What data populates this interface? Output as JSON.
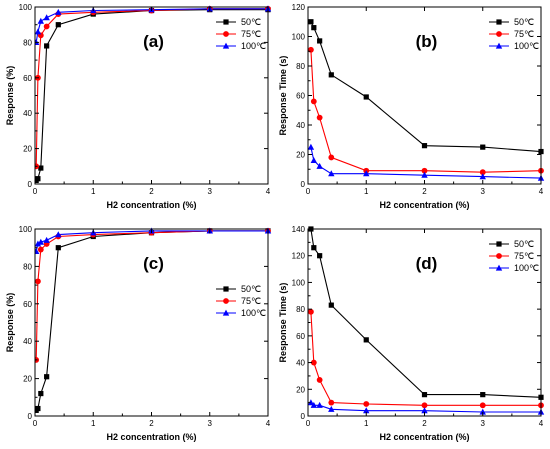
{
  "colors": {
    "50": "#000000",
    "75": "#ff0000",
    "100": "#0000ff"
  },
  "chart_data": [
    {
      "panel": "(a)",
      "type": "line",
      "xlabel": "H2 concentration (%)",
      "ylabel": "Response (%)",
      "xlim": [
        0,
        4
      ],
      "ylim": [
        0,
        100
      ],
      "xticks": [
        0,
        1,
        2,
        3,
        4
      ],
      "yticks": [
        0,
        20,
        40,
        60,
        80,
        100
      ],
      "legend": "top-right",
      "grid": false,
      "series": [
        {
          "name": "50℃",
          "color": "#000000",
          "marker": "square",
          "x": [
            0.02,
            0.05,
            0.1,
            0.2,
            0.4,
            1,
            2,
            3,
            4
          ],
          "y": [
            2,
            3,
            9,
            78,
            90,
            96,
            98,
            98.5,
            98.5
          ]
        },
        {
          "name": "75℃",
          "color": "#ff0000",
          "marker": "circle",
          "x": [
            0.02,
            0.05,
            0.1,
            0.2,
            0.4,
            1,
            2,
            3,
            4
          ],
          "y": [
            10,
            60,
            84,
            89,
            96,
            97,
            98,
            99,
            99
          ]
        },
        {
          "name": "100℃",
          "color": "#0000ff",
          "marker": "triangle",
          "x": [
            0.02,
            0.05,
            0.1,
            0.2,
            0.4,
            1,
            2,
            3,
            4
          ],
          "y": [
            80,
            86,
            92,
            94,
            97,
            98,
            98.5,
            99,
            99
          ]
        }
      ]
    },
    {
      "panel": "(b)",
      "type": "line",
      "xlabel": "H2 concentration (%)",
      "ylabel": "Response Time (s)",
      "xlim": [
        0,
        4
      ],
      "ylim": [
        0,
        120
      ],
      "xticks": [
        0,
        1,
        2,
        3,
        4
      ],
      "yticks": [
        0,
        20,
        40,
        60,
        80,
        100,
        120
      ],
      "legend": "top-right",
      "grid": false,
      "series": [
        {
          "name": "50℃",
          "color": "#000000",
          "marker": "square",
          "x": [
            0.05,
            0.1,
            0.2,
            0.4,
            1,
            2,
            3,
            4
          ],
          "y": [
            110,
            106,
            97,
            74,
            59,
            26,
            25,
            22
          ]
        },
        {
          "name": "75℃",
          "color": "#ff0000",
          "marker": "circle",
          "x": [
            0.05,
            0.1,
            0.2,
            0.4,
            1,
            2,
            3,
            4
          ],
          "y": [
            91,
            56,
            45,
            18,
            9,
            9,
            8,
            9
          ]
        },
        {
          "name": "100℃",
          "color": "#0000ff",
          "marker": "triangle",
          "x": [
            0.05,
            0.1,
            0.2,
            0.4,
            1,
            2,
            3,
            4
          ],
          "y": [
            25,
            16,
            12,
            7,
            7,
            6,
            5,
            4
          ]
        }
      ]
    },
    {
      "panel": "(c)",
      "type": "line",
      "xlabel": "H2 concentration (%)",
      "ylabel": "Response (%)",
      "xlim": [
        0,
        4
      ],
      "ylim": [
        0,
        100
      ],
      "xticks": [
        0,
        1,
        2,
        3,
        4
      ],
      "yticks": [
        0,
        20,
        40,
        60,
        80,
        100
      ],
      "legend": "right",
      "grid": false,
      "series": [
        {
          "name": "50℃",
          "color": "#000000",
          "marker": "square",
          "x": [
            0.02,
            0.05,
            0.1,
            0.2,
            0.4,
            1,
            2,
            3,
            4
          ],
          "y": [
            3,
            4,
            12,
            21,
            90,
            96,
            98,
            99,
            99
          ]
        },
        {
          "name": "75℃",
          "color": "#ff0000",
          "marker": "circle",
          "x": [
            0.02,
            0.05,
            0.1,
            0.2,
            0.4,
            1,
            2,
            3,
            4
          ],
          "y": [
            30,
            72,
            89,
            92,
            96,
            97,
            98,
            99,
            99
          ]
        },
        {
          "name": "100℃",
          "color": "#0000ff",
          "marker": "triangle",
          "x": [
            0.02,
            0.05,
            0.1,
            0.2,
            0.4,
            1,
            2,
            3,
            4
          ],
          "y": [
            88,
            92,
            93,
            94,
            97,
            98,
            99,
            99,
            99
          ]
        }
      ]
    },
    {
      "panel": "(d)",
      "type": "line",
      "xlabel": "H2 concentration (%)",
      "ylabel": "Response Time (s)",
      "xlim": [
        0,
        4
      ],
      "ylim": [
        0,
        140
      ],
      "xticks": [
        0,
        1,
        2,
        3,
        4
      ],
      "yticks": [
        0,
        20,
        40,
        60,
        80,
        100,
        120,
        140
      ],
      "legend": "top-right",
      "grid": false,
      "series": [
        {
          "name": "50℃",
          "color": "#000000",
          "marker": "square",
          "x": [
            0.05,
            0.1,
            0.2,
            0.4,
            1,
            2,
            3,
            4
          ],
          "y": [
            140,
            126,
            120,
            83,
            57,
            16,
            16,
            14
          ]
        },
        {
          "name": "75℃",
          "color": "#ff0000",
          "marker": "circle",
          "x": [
            0.05,
            0.1,
            0.2,
            0.4,
            1,
            2,
            3,
            4
          ],
          "y": [
            78,
            40,
            27,
            10,
            9,
            8,
            8,
            8
          ]
        },
        {
          "name": "100℃",
          "color": "#0000ff",
          "marker": "triangle",
          "x": [
            0.05,
            0.1,
            0.2,
            0.4,
            1,
            2,
            3,
            4
          ],
          "y": [
            10,
            8,
            8,
            5,
            4,
            4,
            3,
            3
          ]
        }
      ]
    }
  ]
}
